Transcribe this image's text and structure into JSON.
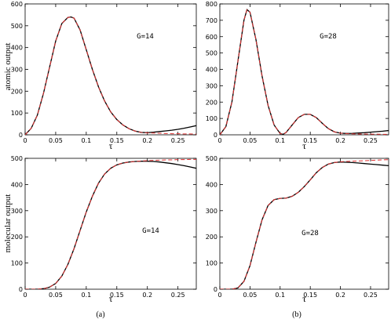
{
  "figure": {
    "ylabel_top": "atomic output",
    "ylabel_bottom": "molecular output",
    "panel_a": "(a)",
    "panel_b": "(b)"
  },
  "chart_data": [
    {
      "id": "top-left",
      "type": "line",
      "xlabel": "τ",
      "ylabel": "atomic output",
      "annotation": "G=14",
      "xlim": [
        0,
        0.28
      ],
      "ylim": [
        0,
        600
      ],
      "xticks": [
        0,
        0.05,
        0.1,
        0.15,
        0.2,
        0.25
      ],
      "xtick_labels": [
        "0",
        "0.05",
        "0.1",
        "0.15",
        "0.2",
        "0.25"
      ],
      "yticks": [
        0,
        100,
        200,
        300,
        400,
        500,
        600
      ],
      "ytick_labels": [
        "0",
        "100",
        "200",
        "300",
        "400",
        "500",
        "600"
      ],
      "series": [
        {
          "color": "#000000",
          "dash": "solid",
          "x": [
            0,
            0.01,
            0.02,
            0.03,
            0.04,
            0.05,
            0.06,
            0.07,
            0.075,
            0.08,
            0.09,
            0.1,
            0.11,
            0.12,
            0.13,
            0.14,
            0.15,
            0.16,
            0.17,
            0.18,
            0.19,
            0.2,
            0.21,
            0.22,
            0.23,
            0.24,
            0.25,
            0.26,
            0.27,
            0.28
          ],
          "y": [
            0,
            30,
            90,
            190,
            310,
            430,
            510,
            538,
            540,
            535,
            480,
            390,
            300,
            220,
            155,
            105,
            70,
            45,
            28,
            17,
            11,
            10,
            12,
            15,
            18,
            21,
            25,
            30,
            36,
            42
          ]
        },
        {
          "color": "#e03030",
          "dash": "dashed",
          "x": [
            0,
            0.01,
            0.02,
            0.03,
            0.04,
            0.05,
            0.06,
            0.07,
            0.075,
            0.08,
            0.09,
            0.1,
            0.11,
            0.12,
            0.13,
            0.14,
            0.15,
            0.16,
            0.17,
            0.18,
            0.19,
            0.2,
            0.21,
            0.22,
            0.23,
            0.24,
            0.25,
            0.26,
            0.27,
            0.28
          ],
          "y": [
            0,
            30,
            90,
            190,
            310,
            430,
            510,
            538,
            540,
            535,
            480,
            390,
            300,
            220,
            155,
            105,
            70,
            45,
            28,
            17,
            11,
            9,
            8,
            7,
            6,
            5,
            5,
            4,
            4,
            3
          ]
        }
      ]
    },
    {
      "id": "top-right",
      "type": "line",
      "xlabel": "τ",
      "ylabel": "",
      "annotation": "G=28",
      "xlim": [
        0,
        0.28
      ],
      "ylim": [
        0,
        800
      ],
      "xticks": [
        0,
        0.05,
        0.1,
        0.15,
        0.2,
        0.25
      ],
      "xtick_labels": [
        "0",
        "0.05",
        "0.1",
        "0.15",
        "0.2",
        "0.25"
      ],
      "yticks": [
        0,
        100,
        200,
        300,
        400,
        500,
        600,
        700,
        800
      ],
      "ytick_labels": [
        "0",
        "100",
        "200",
        "300",
        "400",
        "500",
        "600",
        "700",
        "800"
      ],
      "series": [
        {
          "color": "#000000",
          "dash": "solid",
          "x": [
            0,
            0.01,
            0.02,
            0.03,
            0.04,
            0.045,
            0.05,
            0.06,
            0.07,
            0.08,
            0.09,
            0.1,
            0.105,
            0.11,
            0.12,
            0.13,
            0.14,
            0.15,
            0.16,
            0.17,
            0.18,
            0.19,
            0.2,
            0.21,
            0.22,
            0.23,
            0.24,
            0.25,
            0.26,
            0.27,
            0.28
          ],
          "y": [
            0,
            50,
            200,
            450,
            700,
            765,
            750,
            580,
            360,
            180,
            60,
            8,
            3,
            15,
            60,
            105,
            125,
            125,
            105,
            70,
            38,
            18,
            10,
            8,
            9,
            11,
            13,
            16,
            19,
            22,
            26
          ]
        },
        {
          "color": "#e03030",
          "dash": "dashed",
          "x": [
            0,
            0.01,
            0.02,
            0.03,
            0.04,
            0.045,
            0.05,
            0.06,
            0.07,
            0.08,
            0.09,
            0.1,
            0.105,
            0.11,
            0.12,
            0.13,
            0.14,
            0.15,
            0.16,
            0.17,
            0.18,
            0.19,
            0.2,
            0.21,
            0.22,
            0.23,
            0.24,
            0.25,
            0.26,
            0.27,
            0.28
          ],
          "y": [
            0,
            50,
            200,
            450,
            700,
            765,
            750,
            580,
            360,
            180,
            60,
            8,
            3,
            15,
            60,
            105,
            125,
            125,
            105,
            70,
            38,
            18,
            10,
            7,
            6,
            5,
            5,
            4,
            4,
            3,
            3
          ]
        }
      ]
    },
    {
      "id": "bottom-left",
      "type": "line",
      "xlabel": "τ",
      "ylabel": "molecular output",
      "annotation": "G=14",
      "xlim": [
        0,
        0.28
      ],
      "ylim": [
        0,
        500
      ],
      "xticks": [
        0,
        0.05,
        0.1,
        0.15,
        0.2,
        0.25
      ],
      "xtick_labels": [
        "0",
        "0.05",
        "0.1",
        "0.15",
        "0.2",
        "0.25"
      ],
      "yticks": [
        0,
        100,
        200,
        300,
        400,
        500
      ],
      "ytick_labels": [
        "0",
        "100",
        "200",
        "300",
        "400",
        "500"
      ],
      "series": [
        {
          "color": "#000000",
          "dash": "solid",
          "x": [
            0,
            0.02,
            0.03,
            0.04,
            0.05,
            0.06,
            0.07,
            0.08,
            0.09,
            0.1,
            0.11,
            0.12,
            0.13,
            0.14,
            0.15,
            0.16,
            0.17,
            0.18,
            0.19,
            0.2,
            0.21,
            0.22,
            0.23,
            0.24,
            0.25,
            0.26,
            0.27,
            0.28
          ],
          "y": [
            0,
            0,
            2,
            8,
            22,
            50,
            95,
            155,
            225,
            295,
            355,
            405,
            440,
            462,
            475,
            482,
            486,
            488,
            489,
            489,
            488,
            486,
            483,
            480,
            476,
            472,
            467,
            462
          ]
        },
        {
          "color": "#e03030",
          "dash": "dashed",
          "x": [
            0,
            0.02,
            0.03,
            0.04,
            0.05,
            0.06,
            0.07,
            0.08,
            0.09,
            0.1,
            0.11,
            0.12,
            0.13,
            0.14,
            0.15,
            0.16,
            0.17,
            0.18,
            0.19,
            0.2,
            0.21,
            0.22,
            0.23,
            0.24,
            0.25,
            0.26,
            0.27,
            0.28
          ],
          "y": [
            0,
            0,
            2,
            8,
            22,
            50,
            95,
            155,
            225,
            295,
            355,
            405,
            440,
            462,
            475,
            482,
            486,
            488,
            490,
            491,
            492,
            493,
            494,
            494,
            495,
            495,
            496,
            496
          ]
        }
      ]
    },
    {
      "id": "bottom-right",
      "type": "line",
      "xlabel": "τ",
      "ylabel": "",
      "annotation": "G=28",
      "xlim": [
        0,
        0.28
      ],
      "ylim": [
        0,
        500
      ],
      "xticks": [
        0,
        0.05,
        0.1,
        0.15,
        0.2,
        0.25
      ],
      "xtick_labels": [
        "0",
        "0.05",
        "0.1",
        "0.15",
        "0.2",
        "0.25"
      ],
      "yticks": [
        0,
        100,
        200,
        300,
        400,
        500
      ],
      "ytick_labels": [
        "0",
        "100",
        "200",
        "300",
        "400",
        "500"
      ],
      "series": [
        {
          "color": "#000000",
          "dash": "solid",
          "x": [
            0,
            0.02,
            0.03,
            0.04,
            0.05,
            0.06,
            0.07,
            0.08,
            0.09,
            0.1,
            0.11,
            0.12,
            0.13,
            0.14,
            0.15,
            0.16,
            0.17,
            0.18,
            0.19,
            0.2,
            0.21,
            0.22,
            0.23,
            0.24,
            0.25,
            0.26,
            0.27,
            0.28
          ],
          "y": [
            0,
            0,
            5,
            30,
            90,
            180,
            265,
            320,
            342,
            347,
            348,
            355,
            370,
            392,
            418,
            445,
            465,
            478,
            484,
            486,
            485,
            484,
            482,
            480,
            478,
            476,
            474,
            472
          ]
        },
        {
          "color": "#e03030",
          "dash": "dashed",
          "x": [
            0,
            0.02,
            0.03,
            0.04,
            0.05,
            0.06,
            0.07,
            0.08,
            0.09,
            0.1,
            0.11,
            0.12,
            0.13,
            0.14,
            0.15,
            0.16,
            0.17,
            0.18,
            0.19,
            0.2,
            0.21,
            0.22,
            0.23,
            0.24,
            0.25,
            0.26,
            0.27,
            0.28
          ],
          "y": [
            0,
            0,
            5,
            30,
            90,
            180,
            265,
            320,
            342,
            347,
            348,
            355,
            370,
            392,
            418,
            445,
            465,
            478,
            484,
            487,
            488,
            489,
            490,
            491,
            492,
            493,
            494,
            495
          ]
        }
      ]
    }
  ]
}
